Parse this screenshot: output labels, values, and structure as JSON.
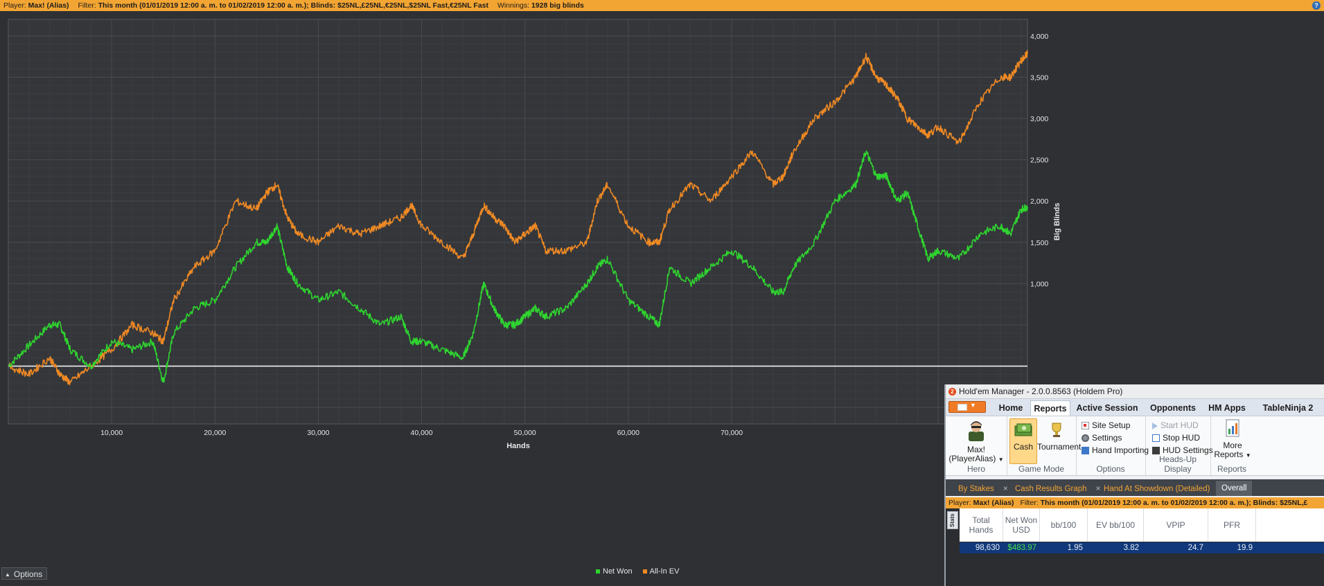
{
  "topbar": {
    "player_label": "Player:",
    "player_value": "Max! (Alias)",
    "filter_label": "Filter:",
    "filter_value": "This month (01/01/2019 12:00 a. m. to 01/02/2019 12:00 a. m.); Blinds: $25NL,£25NL,€25NL,$25NL Fast,€25NL Fast",
    "winnings_label": "Winnings:",
    "winnings_value": "1928 big blinds",
    "help_icon": "?"
  },
  "chart_data": {
    "type": "line",
    "title": "",
    "xlabel": "Hands",
    "ylabel": "Big Blinds",
    "xlim": [
      0,
      98630
    ],
    "ylim": [
      -700,
      4200
    ],
    "x_ticks": [
      10000,
      20000,
      30000,
      40000,
      50000,
      60000,
      70000
    ],
    "x_tick_labels": [
      "10,000",
      "20,000",
      "30,000",
      "40,000",
      "50,000",
      "60,000",
      "70,000"
    ],
    "y_ticks": [
      1000,
      1500,
      2000,
      2500,
      3000,
      3500,
      4000
    ],
    "y_tick_labels": [
      "1,000",
      "1,500",
      "2,000",
      "2,500",
      "3,000",
      "3,500",
      "4,000"
    ],
    "grid": true,
    "series": [
      {
        "name": "Net Won",
        "color": "#2fd52f",
        "x": [
          0,
          2000,
          4000,
          5000,
          6000,
          8000,
          10000,
          12000,
          14000,
          15000,
          16000,
          18000,
          20000,
          22000,
          24000,
          25000,
          26000,
          27000,
          28000,
          30000,
          32000,
          34000,
          36000,
          38000,
          39000,
          40000,
          42000,
          44000,
          45000,
          46000,
          47000,
          48000,
          49000,
          50000,
          51000,
          52000,
          54000,
          56000,
          57000,
          58000,
          60000,
          62000,
          63000,
          64000,
          66000,
          68000,
          70000,
          72000,
          74000,
          75000,
          76000,
          78000,
          80000,
          82000,
          83000,
          84000,
          85000,
          86000,
          87000,
          88000,
          89000,
          90000,
          92000,
          94000,
          96000,
          97000,
          98000,
          98630
        ],
        "y": [
          0,
          250,
          500,
          500,
          200,
          0,
          300,
          200,
          300,
          -200,
          400,
          700,
          800,
          1200,
          1500,
          1500,
          1700,
          1200,
          1000,
          800,
          900,
          700,
          500,
          600,
          300,
          300,
          200,
          100,
          400,
          1000,
          700,
          500,
          500,
          600,
          700,
          600,
          700,
          1000,
          1200,
          1300,
          800,
          600,
          500,
          1200,
          1000,
          1200,
          1400,
          1200,
          900,
          900,
          1200,
          1500,
          2000,
          2200,
          2600,
          2300,
          2300,
          2000,
          2100,
          1700,
          1300,
          1400,
          1300,
          1600,
          1700,
          1600,
          1900,
          1928
        ]
      },
      {
        "name": "All-In EV",
        "color": "#f08a24",
        "x": [
          0,
          2000,
          4000,
          5000,
          6000,
          8000,
          10000,
          12000,
          14000,
          15000,
          16000,
          18000,
          20000,
          22000,
          24000,
          25000,
          26000,
          27000,
          28000,
          30000,
          32000,
          34000,
          36000,
          38000,
          39000,
          40000,
          42000,
          44000,
          45000,
          46000,
          47000,
          48000,
          49000,
          50000,
          51000,
          52000,
          54000,
          56000,
          57000,
          58000,
          60000,
          62000,
          63000,
          64000,
          66000,
          68000,
          70000,
          72000,
          74000,
          75000,
          76000,
          78000,
          80000,
          82000,
          83000,
          84000,
          85000,
          86000,
          87000,
          88000,
          89000,
          90000,
          92000,
          94000,
          96000,
          97000,
          98000,
          98630
        ],
        "y": [
          0,
          -100,
          100,
          -100,
          -200,
          0,
          200,
          500,
          400,
          300,
          800,
          1200,
          1400,
          2000,
          1900,
          2100,
          2200,
          1800,
          1600,
          1500,
          1700,
          1600,
          1700,
          1800,
          1950,
          1700,
          1500,
          1300,
          1600,
          1950,
          1800,
          1700,
          1500,
          1600,
          1700,
          1400,
          1400,
          1500,
          2000,
          2200,
          1700,
          1500,
          1500,
          1900,
          2200,
          2000,
          2300,
          2600,
          2200,
          2300,
          2600,
          3000,
          3200,
          3500,
          3750,
          3500,
          3400,
          3250,
          3000,
          2900,
          2800,
          2900,
          2700,
          3200,
          3500,
          3500,
          3700,
          3780
        ]
      }
    ],
    "legend": "bottom-center",
    "baseline": 0
  },
  "options_button": "Options",
  "hm": {
    "title": "Hold'em Manager - 2.0.0.8563 (Holdem Pro)",
    "main_tabs": [
      "Home",
      "Reports",
      "Active Session",
      "Opponents",
      "HM Apps",
      "TableNinja 2"
    ],
    "active_tab": "Reports",
    "ribbon": {
      "hero_button": "Max! (PlayerAlias)",
      "hero_group": "Hero",
      "cash_button": "Cash",
      "tournament_button": "Tournament",
      "game_mode_group": "Game Mode",
      "site_setup": "Site Setup",
      "settings": "Settings",
      "hand_importing": "Hand Importing",
      "options_group": "Options",
      "start_hud": "Start HUD",
      "stop_hud": "Stop HUD",
      "hud_settings": "HUD Settings",
      "hud_group": "Heads-Up Display",
      "more_reports": "More Reports",
      "reports_group": "Reports"
    },
    "report_tabs": [
      "By Stakes",
      "Cash Results Graph",
      "Hand At Showdown (Detailed)",
      "Overall"
    ],
    "filter_bar": {
      "player_label": "Player:",
      "player_value": "Max! (Alias)",
      "filter_label": "Filter:",
      "filter_value": "This month (01/01/2019 12:00 a. m. to 01/02/2019 12:00 a. m.); Blinds: $25NL,£"
    },
    "stats_label": "Stats",
    "table": {
      "headers": [
        "Total Hands",
        "Net Won USD",
        "bb/100",
        "EV bb/100",
        "VPIP",
        "PFR"
      ],
      "row": [
        "98,630",
        "$483.97",
        "1.95",
        "3.82",
        "24.7",
        "19.9"
      ]
    }
  }
}
